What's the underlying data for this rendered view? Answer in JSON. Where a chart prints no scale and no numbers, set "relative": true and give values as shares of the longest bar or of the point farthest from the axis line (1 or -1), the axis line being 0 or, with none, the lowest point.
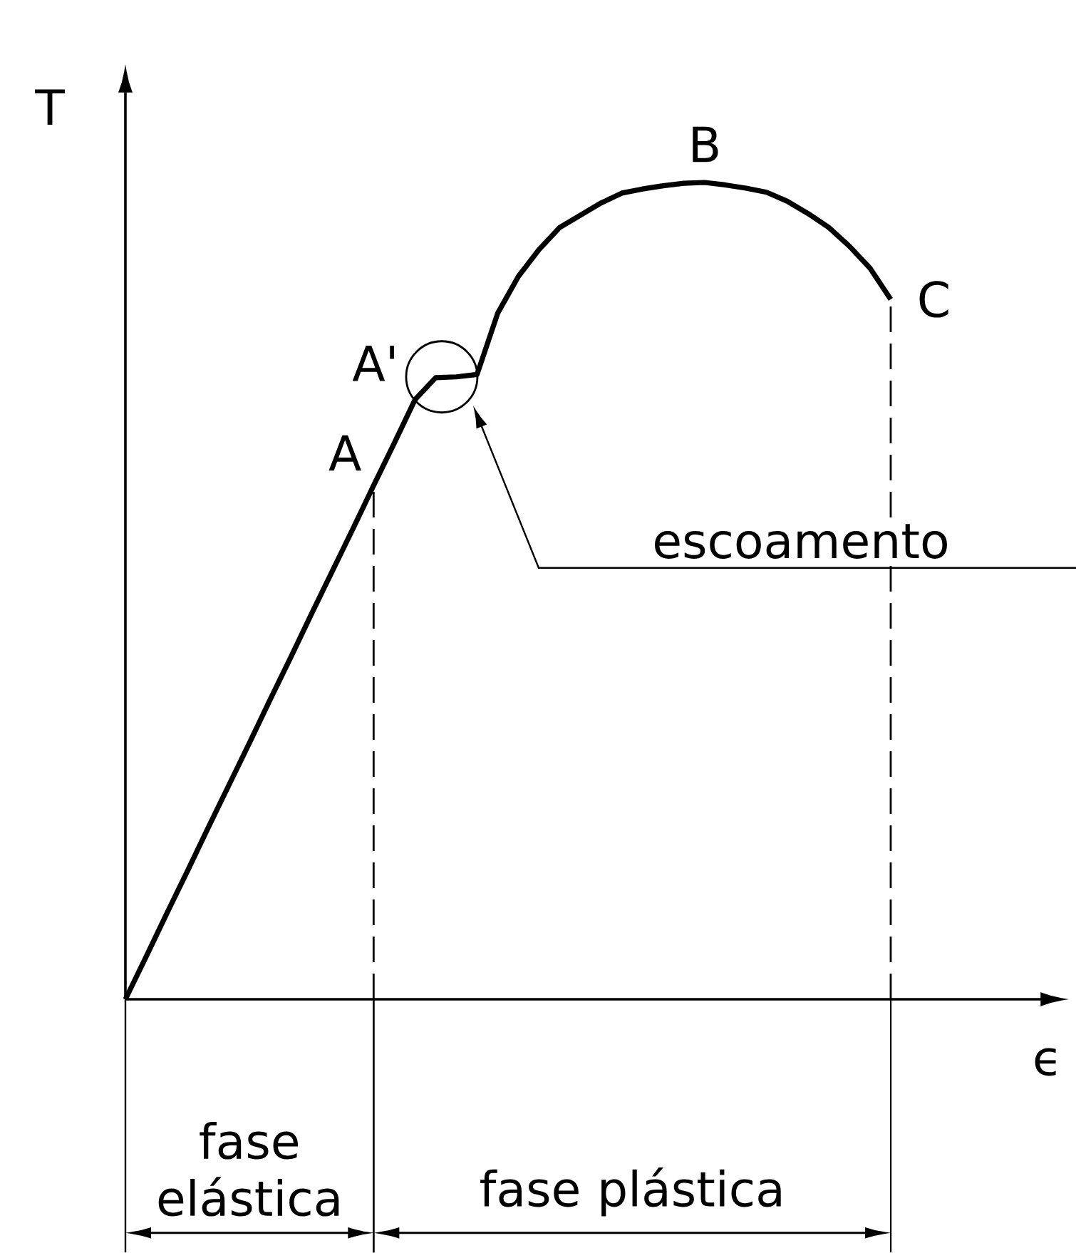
{
  "chart_data": {
    "type": "line",
    "relative": true,
    "xlabel": "ϵ",
    "ylabel": "T",
    "categories": [
      null,
      null,
      null,
      null,
      null,
      null,
      null,
      null,
      null,
      null,
      null,
      null,
      null,
      null,
      null,
      null,
      null,
      null,
      null,
      null,
      null,
      null,
      null,
      null,
      null,
      null,
      null,
      null,
      null,
      null,
      null,
      null,
      null,
      null,
      null,
      null,
      null,
      null
    ],
    "series": [
      {
        "color": "#000000",
        "values": [
          0,
          0.052,
          0.105,
          0.157,
          0.21,
          0.262,
          0.314,
          0.367,
          0.419,
          0.472,
          0.524,
          0.576,
          0.629,
          0.681,
          0.734,
          0.761,
          0.762,
          0.765,
          0.84,
          0.885,
          0.918,
          0.945,
          0.96,
          0.975,
          0.987,
          0.992,
          0.996,
          0.999,
          1.0,
          0.997,
          0.993,
          0.988,
          0.977,
          0.962,
          0.945,
          0.922,
          0.895,
          0.857
        ]
      }
    ],
    "annotations": [
      "A",
      "A'",
      "B",
      "C",
      "escoamento",
      "fase elástica",
      "fase plástica"
    ]
  }
}
